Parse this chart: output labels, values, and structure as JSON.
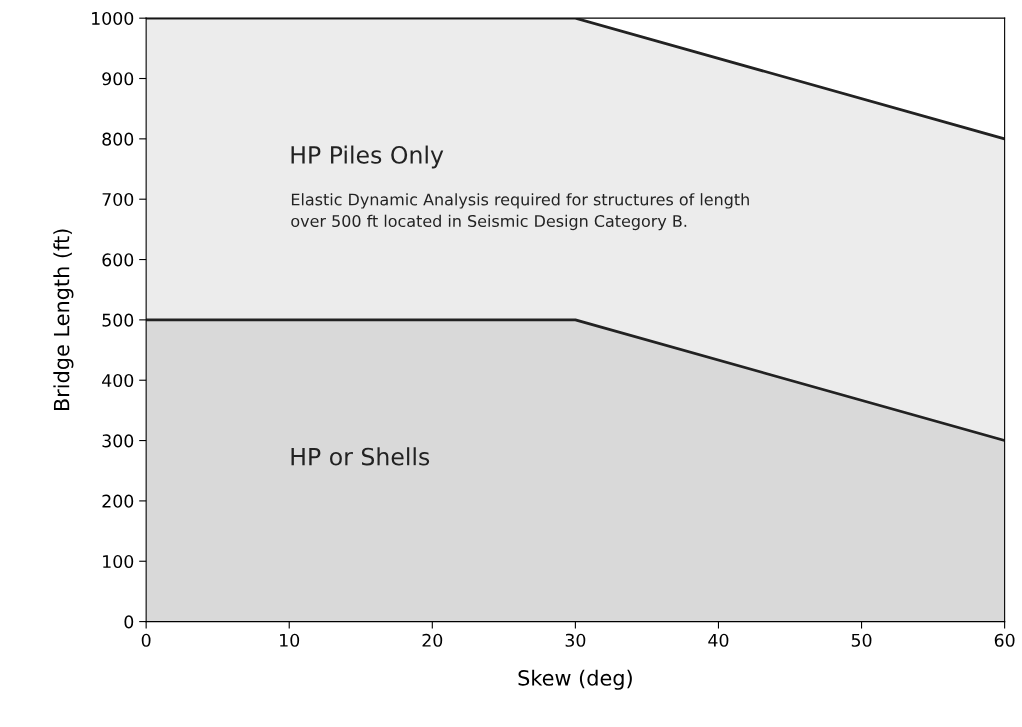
{
  "chart_data": {
    "type": "area",
    "xlabel": "Skew (deg)",
    "ylabel": "Bridge Length (ft)",
    "x": [
      0,
      30,
      60
    ],
    "stacked": true,
    "series": [
      {
        "name": "HP or Shells",
        "color": "#d9d9d9",
        "values": [
          500,
          500,
          300
        ]
      },
      {
        "name": "HP Piles Only",
        "color": "#ececec",
        "values": [
          500,
          500,
          500
        ]
      }
    ],
    "annotations": [
      "Elastic Dynamic Analysis required for structures of length\nover 500 ft located in Seismic Design Category B."
    ],
    "xlim": [
      0,
      60
    ],
    "ylim": [
      0,
      1000
    ],
    "xticks": [
      0,
      10,
      20,
      30,
      40,
      50,
      60
    ],
    "yticks": [
      0,
      100,
      200,
      300,
      400,
      500,
      600,
      700,
      800,
      900,
      1000
    ],
    "grid": false,
    "legend": false
  }
}
